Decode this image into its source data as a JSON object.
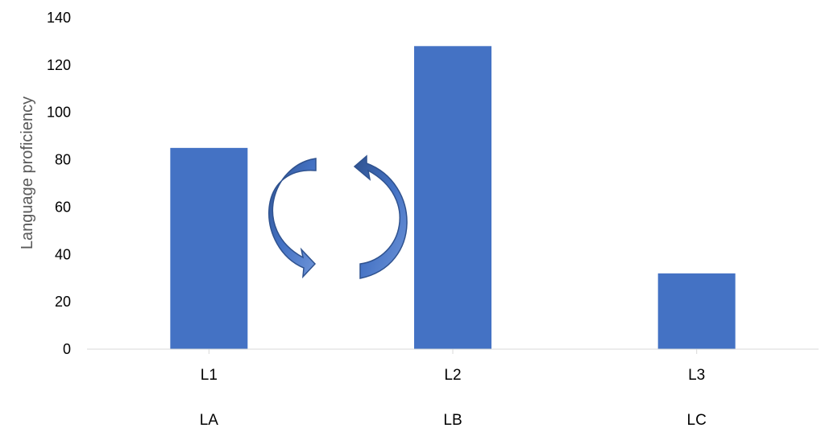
{
  "chart_data": {
    "type": "bar",
    "categories": [
      "L1",
      "L2",
      "L3"
    ],
    "category_sublabels": [
      "LA",
      "LB",
      "LC"
    ],
    "values": [
      85,
      128,
      32
    ],
    "ylabel": "Language proficiency",
    "ylim": [
      0,
      140
    ],
    "yticks": [
      0,
      20,
      40,
      60,
      80,
      100,
      120,
      140
    ],
    "grid": false,
    "legend": "none",
    "bar_color": "#4472C4",
    "annotations": [
      {
        "type": "cycle-arrows",
        "between": [
          "L1",
          "L2"
        ],
        "color": "#4472C4"
      }
    ]
  }
}
